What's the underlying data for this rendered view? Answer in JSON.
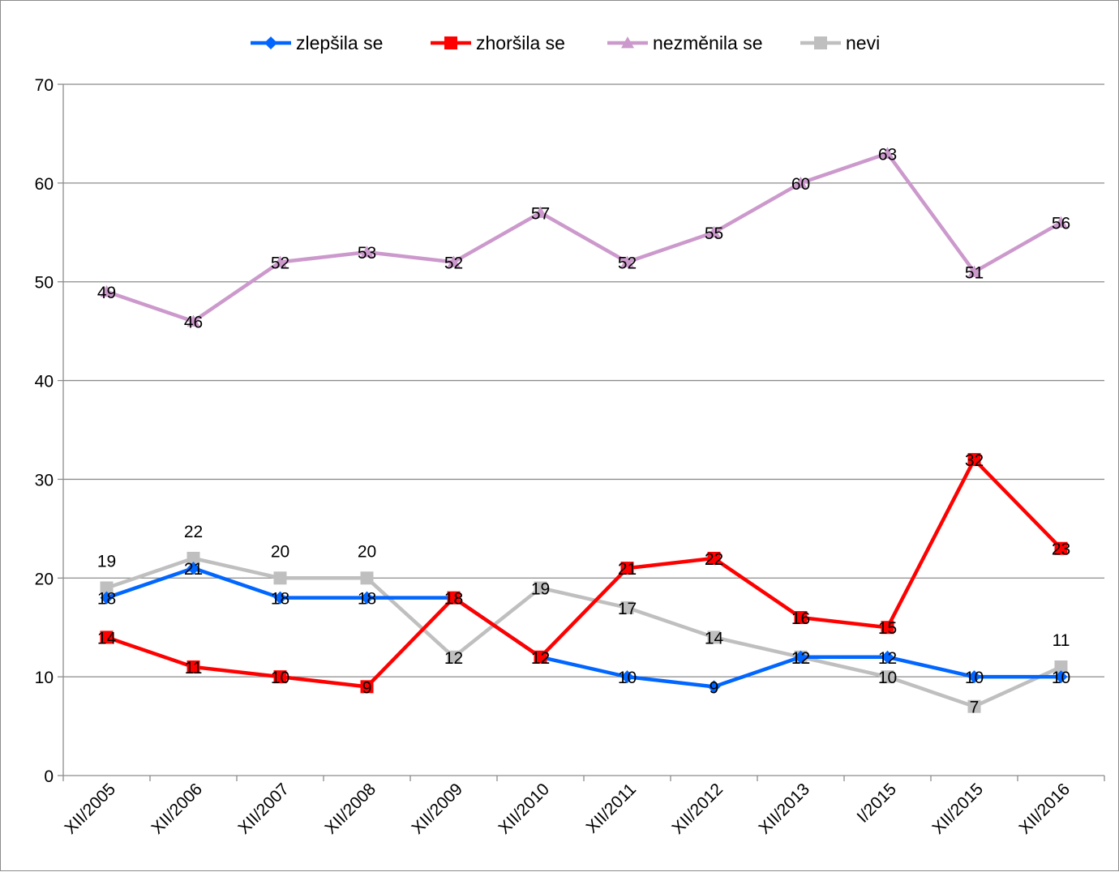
{
  "chart_data": {
    "type": "line",
    "title": "",
    "xlabel": "",
    "ylabel": "",
    "categories": [
      "XII/2005",
      "XII/2006",
      "XII/2007",
      "XII/2008",
      "XII/2009",
      "XII/2010",
      "XII/2011",
      "XII/2012",
      "XII/2013",
      "I/2015",
      "XII/2015",
      "XII/2016"
    ],
    "ylim": [
      0,
      70
    ],
    "yticks": [
      0,
      10,
      20,
      30,
      40,
      50,
      60,
      70
    ],
    "grid": true,
    "legend_position": "top-center",
    "series": [
      {
        "name": "zlepšila se",
        "color": "#0066ff",
        "marker": "diamond",
        "values": [
          18,
          21,
          18,
          18,
          18,
          12,
          10,
          9,
          12,
          12,
          10,
          10
        ]
      },
      {
        "name": "zhoršila se",
        "color": "#ff0000",
        "marker": "square",
        "values": [
          14,
          11,
          10,
          9,
          18,
          12,
          21,
          22,
          16,
          15,
          32,
          23
        ]
      },
      {
        "name": "nezměnila se",
        "color": "#cc99cc",
        "marker": "triangle",
        "values": [
          49,
          46,
          52,
          53,
          52,
          57,
          52,
          55,
          60,
          63,
          51,
          56
        ]
      },
      {
        "name": "nevi",
        "color": "#bfbfbf",
        "marker": "square",
        "values": [
          19,
          22,
          20,
          20,
          12,
          19,
          17,
          14,
          12,
          10,
          7,
          11
        ]
      }
    ]
  }
}
